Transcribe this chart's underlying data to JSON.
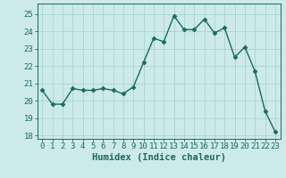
{
  "x": [
    0,
    1,
    2,
    3,
    4,
    5,
    6,
    7,
    8,
    9,
    10,
    11,
    12,
    13,
    14,
    15,
    16,
    17,
    18,
    19,
    20,
    21,
    22,
    23
  ],
  "y": [
    20.6,
    19.8,
    19.8,
    20.7,
    20.6,
    20.6,
    20.7,
    20.6,
    20.4,
    20.8,
    22.2,
    23.6,
    23.4,
    24.9,
    24.1,
    24.1,
    24.7,
    23.9,
    24.2,
    22.5,
    23.1,
    21.7,
    19.4,
    18.2
  ],
  "xlabel": "Humidex (Indice chaleur)",
  "ylim": [
    17.8,
    25.6
  ],
  "xlim": [
    -0.5,
    23.5
  ],
  "yticks": [
    18,
    19,
    20,
    21,
    22,
    23,
    24,
    25
  ],
  "xticks": [
    0,
    1,
    2,
    3,
    4,
    5,
    6,
    7,
    8,
    9,
    10,
    11,
    12,
    13,
    14,
    15,
    16,
    17,
    18,
    19,
    20,
    21,
    22,
    23
  ],
  "line_color": "#1a6b5a",
  "marker": "D",
  "marker_size": 2.5,
  "line_width": 1.0,
  "bg_color": "#cceae7",
  "grid_color": "#aad4d0",
  "axis_color": "#1a6b5a",
  "tick_label_color": "#1a6b5a",
  "xlabel_color": "#1a6b5a",
  "xlabel_fontsize": 7.5,
  "tick_fontsize": 6.5
}
